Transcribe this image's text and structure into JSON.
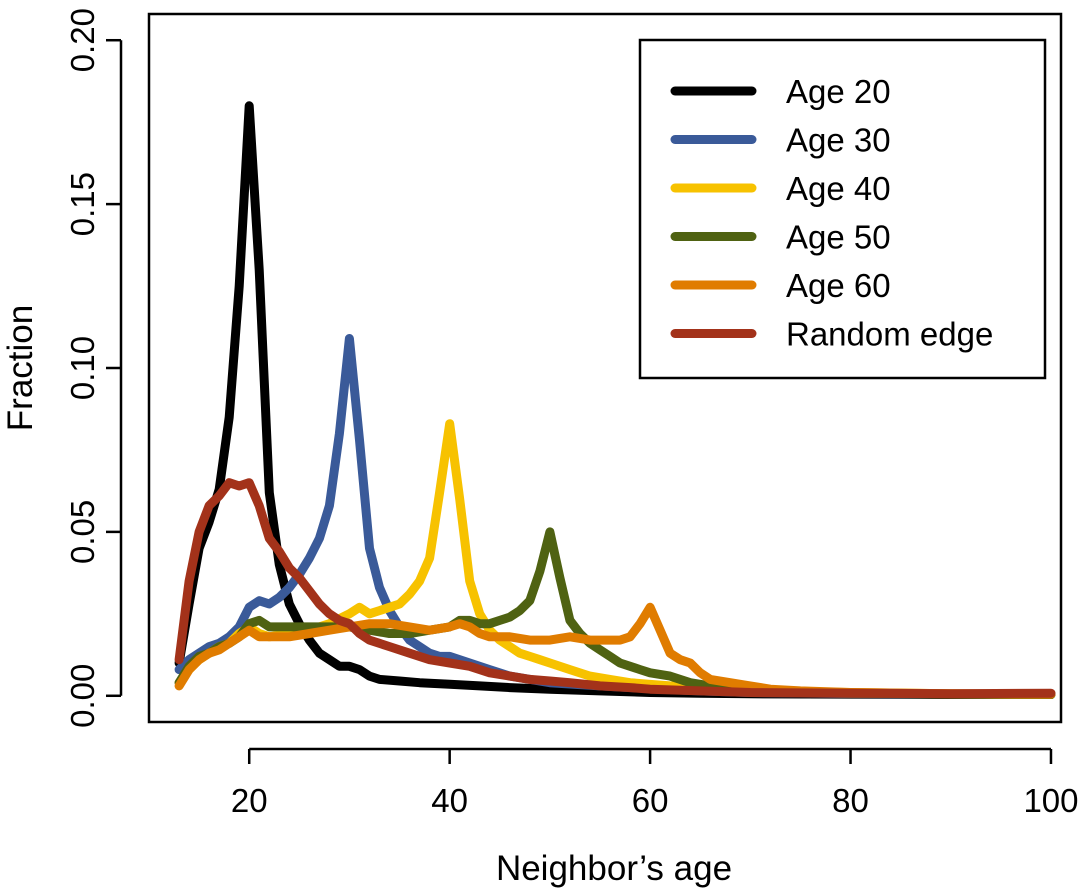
{
  "chart_data": {
    "type": "line",
    "title": "",
    "xlabel": "Neighbor’s age",
    "ylabel": "Fraction",
    "xlim": [
      10,
      101
    ],
    "ylim": [
      -0.008,
      0.208
    ],
    "grid": false,
    "legend_position": "top-right",
    "x_ticks": [
      20,
      40,
      60,
      80,
      100
    ],
    "x_tick_labels": [
      "20",
      "40",
      "60",
      "80",
      "100"
    ],
    "y_ticks": [
      0.0,
      0.05,
      0.1,
      0.15,
      0.2
    ],
    "y_tick_labels": [
      "0.00",
      "0.05",
      "0.10",
      "0.15",
      "0.20"
    ],
    "series": [
      {
        "name": "Age 20",
        "color": "#000000",
        "points": [
          [
            13,
            0.01
          ],
          [
            14,
            0.028
          ],
          [
            15,
            0.045
          ],
          [
            16,
            0.053
          ],
          [
            17,
            0.063
          ],
          [
            18,
            0.085
          ],
          [
            19,
            0.125
          ],
          [
            20,
            0.18
          ],
          [
            21,
            0.13
          ],
          [
            22,
            0.062
          ],
          [
            23,
            0.04
          ],
          [
            24,
            0.028
          ],
          [
            25,
            0.022
          ],
          [
            26,
            0.017
          ],
          [
            27,
            0.013
          ],
          [
            28,
            0.011
          ],
          [
            29,
            0.009
          ],
          [
            30,
            0.009
          ],
          [
            31,
            0.008
          ],
          [
            32,
            0.006
          ],
          [
            33,
            0.005
          ],
          [
            35,
            0.0045
          ],
          [
            37,
            0.004
          ],
          [
            40,
            0.0035
          ],
          [
            43,
            0.003
          ],
          [
            46,
            0.0025
          ],
          [
            50,
            0.002
          ],
          [
            55,
            0.0015
          ],
          [
            60,
            0.001
          ],
          [
            65,
            0.0008
          ],
          [
            70,
            0.0006
          ],
          [
            80,
            0.0005
          ],
          [
            90,
            0.0004
          ],
          [
            100,
            0.0004
          ]
        ]
      },
      {
        "name": "Age 30",
        "color": "#3a5a99",
        "points": [
          [
            13,
            0.008
          ],
          [
            14,
            0.011
          ],
          [
            15,
            0.013
          ],
          [
            16,
            0.015
          ],
          [
            17,
            0.016
          ],
          [
            18,
            0.018
          ],
          [
            19,
            0.021
          ],
          [
            20,
            0.027
          ],
          [
            21,
            0.029
          ],
          [
            22,
            0.028
          ],
          [
            23,
            0.03
          ],
          [
            24,
            0.033
          ],
          [
            25,
            0.037
          ],
          [
            26,
            0.042
          ],
          [
            27,
            0.048
          ],
          [
            28,
            0.058
          ],
          [
            29,
            0.08
          ],
          [
            30,
            0.109
          ],
          [
            31,
            0.078
          ],
          [
            32,
            0.045
          ],
          [
            33,
            0.033
          ],
          [
            34,
            0.026
          ],
          [
            35,
            0.021
          ],
          [
            36,
            0.017
          ],
          [
            37,
            0.015
          ],
          [
            38,
            0.013
          ],
          [
            39,
            0.012
          ],
          [
            40,
            0.012
          ],
          [
            42,
            0.01
          ],
          [
            44,
            0.008
          ],
          [
            46,
            0.006
          ],
          [
            50,
            0.004
          ],
          [
            55,
            0.003
          ],
          [
            60,
            0.0022
          ],
          [
            65,
            0.0015
          ],
          [
            70,
            0.001
          ],
          [
            80,
            0.0007
          ],
          [
            90,
            0.0005
          ],
          [
            100,
            0.0004
          ]
        ]
      },
      {
        "name": "Age 40",
        "color": "#f7c200",
        "points": [
          [
            13,
            0.004
          ],
          [
            14,
            0.008
          ],
          [
            15,
            0.011
          ],
          [
            16,
            0.013
          ],
          [
            17,
            0.015
          ],
          [
            18,
            0.016
          ],
          [
            19,
            0.019
          ],
          [
            20,
            0.021
          ],
          [
            21,
            0.019
          ],
          [
            22,
            0.018
          ],
          [
            24,
            0.019
          ],
          [
            26,
            0.02
          ],
          [
            28,
            0.022
          ],
          [
            30,
            0.025
          ],
          [
            31,
            0.027
          ],
          [
            32,
            0.025
          ],
          [
            33,
            0.026
          ],
          [
            34,
            0.027
          ],
          [
            35,
            0.028
          ],
          [
            36,
            0.031
          ],
          [
            37,
            0.035
          ],
          [
            38,
            0.042
          ],
          [
            39,
            0.062
          ],
          [
            40,
            0.083
          ],
          [
            41,
            0.06
          ],
          [
            42,
            0.035
          ],
          [
            43,
            0.025
          ],
          [
            44,
            0.02
          ],
          [
            45,
            0.017
          ],
          [
            46,
            0.015
          ],
          [
            47,
            0.013
          ],
          [
            48,
            0.012
          ],
          [
            49,
            0.011
          ],
          [
            50,
            0.01
          ],
          [
            52,
            0.008
          ],
          [
            54,
            0.006
          ],
          [
            56,
            0.005
          ],
          [
            58,
            0.004
          ],
          [
            60,
            0.0035
          ],
          [
            62,
            0.003
          ],
          [
            65,
            0.0025
          ],
          [
            70,
            0.0018
          ],
          [
            75,
            0.0012
          ],
          [
            80,
            0.001
          ],
          [
            90,
            0.0006
          ],
          [
            100,
            0.0004
          ]
        ]
      },
      {
        "name": "Age 50",
        "color": "#4f6212",
        "points": [
          [
            13,
            0.004
          ],
          [
            14,
            0.009
          ],
          [
            15,
            0.012
          ],
          [
            16,
            0.013
          ],
          [
            17,
            0.015
          ],
          [
            18,
            0.016
          ],
          [
            19,
            0.018
          ],
          [
            20,
            0.022
          ],
          [
            21,
            0.023
          ],
          [
            22,
            0.021
          ],
          [
            24,
            0.021
          ],
          [
            26,
            0.021
          ],
          [
            28,
            0.021
          ],
          [
            30,
            0.021
          ],
          [
            32,
            0.02
          ],
          [
            34,
            0.019
          ],
          [
            36,
            0.019
          ],
          [
            38,
            0.02
          ],
          [
            40,
            0.021
          ],
          [
            41,
            0.023
          ],
          [
            42,
            0.023
          ],
          [
            43,
            0.022
          ],
          [
            44,
            0.022
          ],
          [
            45,
            0.023
          ],
          [
            46,
            0.024
          ],
          [
            47,
            0.026
          ],
          [
            48,
            0.029
          ],
          [
            49,
            0.038
          ],
          [
            50,
            0.05
          ],
          [
            51,
            0.036
          ],
          [
            52,
            0.023
          ],
          [
            53,
            0.019
          ],
          [
            54,
            0.016
          ],
          [
            55,
            0.014
          ],
          [
            56,
            0.012
          ],
          [
            57,
            0.01
          ],
          [
            58,
            0.009
          ],
          [
            59,
            0.008
          ],
          [
            60,
            0.007
          ],
          [
            62,
            0.006
          ],
          [
            64,
            0.004
          ],
          [
            66,
            0.003
          ],
          [
            68,
            0.002
          ],
          [
            70,
            0.0015
          ],
          [
            75,
            0.001
          ],
          [
            80,
            0.0008
          ],
          [
            90,
            0.0005
          ],
          [
            100,
            0.0004
          ]
        ]
      },
      {
        "name": "Age 60",
        "color": "#e07c00",
        "points": [
          [
            13,
            0.003
          ],
          [
            14,
            0.008
          ],
          [
            15,
            0.011
          ],
          [
            16,
            0.013
          ],
          [
            17,
            0.014
          ],
          [
            18,
            0.016
          ],
          [
            19,
            0.018
          ],
          [
            20,
            0.02
          ],
          [
            21,
            0.018
          ],
          [
            22,
            0.018
          ],
          [
            24,
            0.018
          ],
          [
            26,
            0.019
          ],
          [
            28,
            0.02
          ],
          [
            30,
            0.021
          ],
          [
            32,
            0.022
          ],
          [
            34,
            0.022
          ],
          [
            36,
            0.021
          ],
          [
            38,
            0.02
          ],
          [
            40,
            0.021
          ],
          [
            41,
            0.022
          ],
          [
            42,
            0.021
          ],
          [
            43,
            0.019
          ],
          [
            44,
            0.018
          ],
          [
            46,
            0.018
          ],
          [
            48,
            0.017
          ],
          [
            50,
            0.017
          ],
          [
            52,
            0.018
          ],
          [
            54,
            0.017
          ],
          [
            56,
            0.017
          ],
          [
            57,
            0.017
          ],
          [
            58,
            0.018
          ],
          [
            59,
            0.022
          ],
          [
            60,
            0.027
          ],
          [
            61,
            0.02
          ],
          [
            62,
            0.013
          ],
          [
            63,
            0.011
          ],
          [
            64,
            0.01
          ],
          [
            65,
            0.007
          ],
          [
            66,
            0.005
          ],
          [
            68,
            0.004
          ],
          [
            70,
            0.003
          ],
          [
            72,
            0.002
          ],
          [
            75,
            0.0015
          ],
          [
            80,
            0.001
          ],
          [
            90,
            0.0006
          ],
          [
            100,
            0.0005
          ]
        ]
      },
      {
        "name": "Random edge",
        "color": "#a3321a",
        "points": [
          [
            13,
            0.011
          ],
          [
            14,
            0.035
          ],
          [
            15,
            0.05
          ],
          [
            16,
            0.058
          ],
          [
            17,
            0.061
          ],
          [
            18,
            0.065
          ],
          [
            19,
            0.064
          ],
          [
            20,
            0.065
          ],
          [
            21,
            0.058
          ],
          [
            22,
            0.048
          ],
          [
            23,
            0.044
          ],
          [
            24,
            0.039
          ],
          [
            25,
            0.036
          ],
          [
            26,
            0.032
          ],
          [
            27,
            0.028
          ],
          [
            28,
            0.025
          ],
          [
            29,
            0.023
          ],
          [
            30,
            0.022
          ],
          [
            31,
            0.019
          ],
          [
            32,
            0.017
          ],
          [
            34,
            0.015
          ],
          [
            36,
            0.013
          ],
          [
            38,
            0.011
          ],
          [
            40,
            0.01
          ],
          [
            42,
            0.009
          ],
          [
            44,
            0.007
          ],
          [
            46,
            0.006
          ],
          [
            48,
            0.005
          ],
          [
            50,
            0.0045
          ],
          [
            52,
            0.004
          ],
          [
            55,
            0.003
          ],
          [
            58,
            0.0025
          ],
          [
            60,
            0.002
          ],
          [
            65,
            0.0015
          ],
          [
            70,
            0.001
          ],
          [
            80,
            0.0008
          ],
          [
            90,
            0.0006
          ],
          [
            100,
            0.0008
          ]
        ]
      }
    ]
  }
}
